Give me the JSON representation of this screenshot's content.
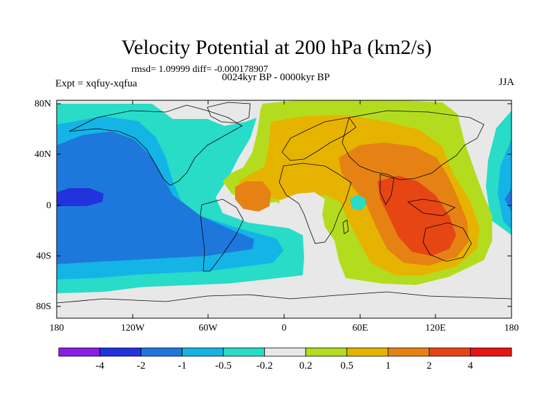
{
  "title": "Velocity Potential at 200 hPa (km2/s)",
  "stats": "rmsd= 1.09999 diff= -0.000178907",
  "subtitle": "0024kyr BP - 0000kyr BP",
  "expt": "Expt = xqfuy-xqfua",
  "season": "JJA",
  "y_ticks": [
    "80N",
    "40N",
    "0",
    "40S",
    "80S"
  ],
  "x_ticks": [
    "180",
    "120W",
    "60W",
    "0",
    "60E",
    "120E",
    "180"
  ],
  "colorbar": {
    "labels": [
      "-4",
      "-2",
      "-1",
      "-0.5",
      "-0.2",
      "0.2",
      "0.5",
      "1",
      "2",
      "4"
    ],
    "colors": [
      "#8a1ee6",
      "#2232dc",
      "#1e78dc",
      "#14b4e6",
      "#28dcc8",
      "#e8e8e8",
      "#b4dc1e",
      "#e6b400",
      "#e68214",
      "#e64614",
      "#e61414"
    ]
  },
  "palette": {
    "neutral": "#e8e8e8",
    "cyan": "#28dcc8",
    "lightblue": "#14b4e6",
    "blue": "#1e78dc",
    "deepblue": "#2232dc",
    "lime": "#b4dc1e",
    "yellow": "#e6b400",
    "orange": "#e68214",
    "red": "#e64614"
  }
}
